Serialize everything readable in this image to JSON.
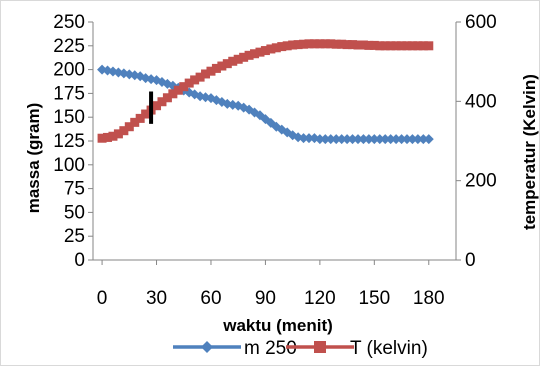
{
  "chart_data": {
    "type": "line",
    "x_ticks": [
      0,
      30,
      60,
      90,
      120,
      150,
      180
    ],
    "y_left_ticks": [
      0,
      25,
      50,
      75,
      100,
      125,
      150,
      175,
      200,
      225,
      250
    ],
    "y_right_ticks": [
      0,
      200,
      400,
      600
    ],
    "xlabel": "waktu (menit)",
    "ylabel_left": "massa (gram)",
    "ylabel_right": "temperatur (Kelvin)",
    "xlim": [
      -5,
      195
    ],
    "ylim_left": [
      0,
      250
    ],
    "ylim_right": [
      0,
      600
    ],
    "grid": false,
    "legend_position": "bottom",
    "series": [
      {
        "name": "m 250",
        "axis": "left",
        "color": "#4f81bd",
        "marker": "diamond",
        "x": [
          0,
          3,
          6,
          9,
          12,
          15,
          18,
          21,
          24,
          27,
          30,
          33,
          36,
          39,
          42,
          45,
          48,
          51,
          54,
          57,
          60,
          63,
          66,
          69,
          72,
          75,
          78,
          81,
          84,
          87,
          90,
          93,
          96,
          99,
          102,
          105,
          108,
          111,
          114,
          117,
          120,
          123,
          126,
          129,
          132,
          135,
          138,
          141,
          144,
          147,
          150,
          153,
          156,
          159,
          162,
          165,
          168,
          171,
          174,
          177,
          180
        ],
        "values": [
          200,
          199,
          198,
          197,
          196,
          195,
          194,
          193,
          191,
          190,
          189,
          187,
          185,
          183,
          181,
          178,
          176,
          174,
          172,
          171,
          170,
          168,
          166,
          164,
          163,
          162,
          160,
          158,
          155,
          152,
          148,
          144,
          140,
          137,
          134,
          131,
          129,
          128,
          128,
          128,
          127,
          127,
          127,
          127,
          127,
          127,
          127,
          127,
          127,
          127,
          127,
          127,
          127,
          127,
          127,
          127,
          127,
          127,
          127,
          127,
          127
        ]
      },
      {
        "name": "T (kelvin)",
        "axis": "right",
        "color": "#c0504d",
        "marker": "square",
        "x": [
          0,
          3,
          6,
          9,
          12,
          15,
          18,
          21,
          24,
          27,
          30,
          33,
          36,
          39,
          42,
          45,
          48,
          51,
          54,
          57,
          60,
          63,
          66,
          69,
          72,
          75,
          78,
          81,
          84,
          87,
          90,
          93,
          96,
          99,
          102,
          105,
          108,
          111,
          114,
          117,
          120,
          123,
          126,
          129,
          132,
          135,
          138,
          141,
          144,
          147,
          150,
          153,
          156,
          159,
          162,
          165,
          168,
          171,
          174,
          177,
          180
        ],
        "values": [
          307,
          309,
          312,
          318,
          326,
          336,
          347,
          357,
          368,
          378,
          389,
          399,
          409,
          419,
          428,
          437,
          446,
          454,
          461,
          469,
          476,
          483,
          489,
          495,
          501,
          506,
          511,
          516,
          520,
          524,
          528,
          532,
          535,
          538,
          540,
          542,
          543,
          544,
          545,
          545,
          545,
          545,
          545,
          544,
          544,
          543,
          543,
          542,
          542,
          541,
          541,
          540,
          540,
          540,
          540,
          540,
          540,
          540,
          540,
          540,
          540
        ]
      }
    ],
    "annotations": [
      {
        "type": "vertical-bar",
        "x": 27,
        "y_from": 177,
        "y_to": 143,
        "axis": "left",
        "color": "#000000"
      }
    ]
  }
}
